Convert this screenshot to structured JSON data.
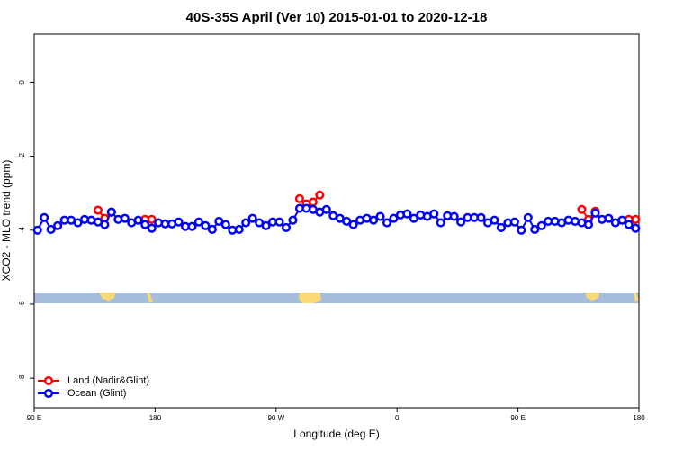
{
  "chart_data": {
    "type": "line",
    "title": "40S-35S April (Ver 10)   2015-01-01 to 2020-12-18",
    "xlabel": "Longitude (deg E)",
    "ylabel": "XCO2 - MLO trend (ppm)",
    "xlim": [
      90,
      540
    ],
    "xticks": [
      {
        "value": 90,
        "label": "90 E"
      },
      {
        "value": 180,
        "label": "180"
      },
      {
        "value": 270,
        "label": "90 W"
      },
      {
        "value": 360,
        "label": "0"
      },
      {
        "value": 450,
        "label": "90 E"
      },
      {
        "value": 540,
        "label": "180"
      }
    ],
    "ylim": [
      -8.8,
      1.3
    ],
    "yticks": [
      0,
      -2,
      -4,
      -6,
      -8
    ],
    "legend": "bottom-left",
    "series": [
      {
        "name": "Land (Nadir&Glint)",
        "color": "#ff0000",
        "x": [
          137.5,
          142.5,
          147.5,
          160,
          172.5,
          177.5,
          230,
          287.5,
          292.5,
          297.5,
          302.5,
          400,
          497.5,
          502.5,
          507.5,
          520,
          532.5,
          537.5
        ],
        "values": [
          -3.46,
          -3.68,
          -3.51,
          null,
          -3.71,
          -3.71,
          null,
          -3.15,
          -3.29,
          -3.24,
          -3.05,
          null,
          -3.44,
          -3.71,
          -3.49,
          null,
          -3.71,
          -3.71
        ]
      },
      {
        "name": "Ocean (Glint)",
        "color": "#0000ff",
        "x": [
          92.5,
          97.5,
          102.5,
          107.5,
          112.5,
          117.5,
          122.5,
          127.5,
          132.5,
          137.5,
          142.5,
          147.5,
          152.5,
          157.5,
          162.5,
          167.5,
          172.5,
          177.5,
          182.5,
          187.5,
          192.5,
          197.5,
          202.5,
          207.5,
          212.5,
          217.5,
          222.5,
          227.5,
          232.5,
          237.5,
          242.5,
          247.5,
          252.5,
          257.5,
          262.5,
          267.5,
          272.5,
          277.5,
          282.5,
          287.5,
          292.5,
          297.5,
          302.5,
          307.5,
          312.5,
          317.5,
          322.5,
          327.5,
          332.5,
          337.5,
          342.5,
          347.5,
          352.5,
          357.5,
          362.5,
          367.5,
          372.5,
          377.5,
          382.5,
          387.5,
          392.5,
          397.5,
          402.5,
          407.5,
          412.5,
          417.5,
          422.5,
          427.5,
          432.5,
          437.5,
          442.5,
          447.5,
          452.5,
          457.5,
          462.5,
          467.5,
          472.5,
          477.5,
          482.5,
          487.5,
          492.5,
          497.5,
          502.5,
          507.5,
          512.5,
          517.5,
          522.5,
          527.5,
          532.5,
          537.5
        ],
        "values": [
          -4.0,
          -3.66,
          -3.98,
          -3.88,
          -3.73,
          -3.73,
          -3.8,
          -3.71,
          -3.73,
          -3.78,
          -3.85,
          -3.51,
          -3.71,
          -3.68,
          -3.8,
          -3.73,
          -3.85,
          -3.95,
          -3.8,
          -3.83,
          -3.83,
          -3.78,
          -3.9,
          -3.9,
          -3.78,
          -3.88,
          -3.98,
          -3.76,
          -3.85,
          -4.0,
          -3.98,
          -3.8,
          -3.68,
          -3.8,
          -3.88,
          -3.78,
          -3.78,
          -3.93,
          -3.73,
          -3.41,
          -3.41,
          -3.44,
          -3.51,
          -3.44,
          -3.61,
          -3.68,
          -3.76,
          -3.85,
          -3.73,
          -3.68,
          -3.73,
          -3.63,
          -3.8,
          -3.68,
          -3.59,
          -3.56,
          -3.68,
          -3.59,
          -3.63,
          -3.56,
          -3.8,
          -3.61,
          -3.63,
          -3.78,
          -3.66,
          -3.66,
          -3.66,
          -3.8,
          -3.73,
          -3.93,
          -3.8,
          -3.78,
          -4.0,
          -3.66,
          -3.98,
          -3.88,
          -3.76,
          -3.76,
          -3.8,
          -3.73,
          -3.76,
          -3.8,
          -3.85,
          -3.54,
          -3.71,
          -3.68,
          -3.8,
          -3.73,
          -3.85,
          -3.95
        ]
      }
    ]
  }
}
